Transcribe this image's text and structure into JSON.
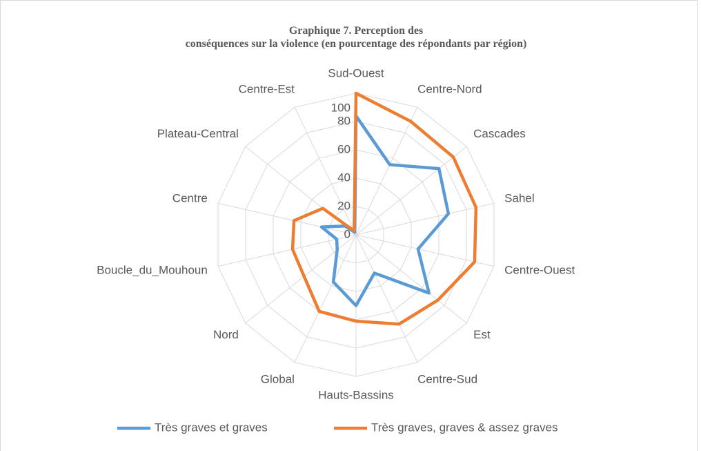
{
  "chart_data": {
    "type": "radar",
    "title": "Graphique 7. Perception des conséquences sur la violence (en pourcentage des répondants par région)",
    "categories": [
      "Sud-Ouest",
      "Centre-Nord",
      "Cascades",
      "Sahel",
      "Centre-Ouest",
      "Est",
      "Centre-Sud",
      "Hauts-Bassins",
      "Global",
      "Nord",
      "Boucle_du_Mouhoun",
      "Centre",
      "Plateau-Central",
      "Centre-Est"
    ],
    "series": [
      {
        "name": "Très graves et graves",
        "color": "#5b9bd5",
        "values": [
          84,
          55,
          75,
          67,
          45,
          66,
          30,
          50,
          37,
          17,
          14,
          25,
          10,
          2
        ]
      },
      {
        "name": "Très graves, graves & assez graves",
        "color": "#ed7d31",
        "values": [
          100,
          89,
          88,
          87,
          86,
          74,
          70,
          61,
          60,
          47,
          46,
          45,
          30,
          3
        ]
      }
    ],
    "ylim": [
      0,
      100
    ],
    "yticks": [
      0,
      20,
      40,
      60,
      80,
      100
    ],
    "grid": true,
    "legend": "bottom"
  }
}
